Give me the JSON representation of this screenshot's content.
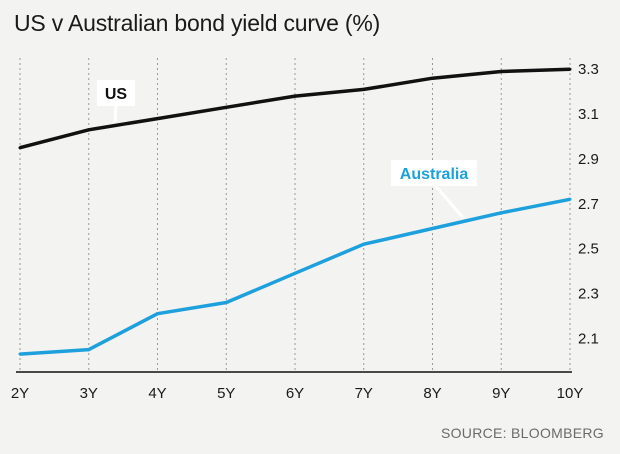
{
  "header": {
    "title": "US v Australian bond yield curve (%)"
  },
  "footer": {
    "source": "SOURCE: BLOOMBERG"
  },
  "chart_data": {
    "type": "line",
    "title": "US v Australian bond yield curve (%)",
    "xlabel": "",
    "ylabel": "",
    "categories": [
      "2Y",
      "3Y",
      "4Y",
      "5Y",
      "6Y",
      "7Y",
      "8Y",
      "9Y",
      "10Y"
    ],
    "yticks": [
      2.1,
      2.3,
      2.5,
      2.7,
      2.9,
      3.1,
      3.3
    ],
    "ylim": [
      1.95,
      3.35
    ],
    "grid": "vertical-dotted",
    "y_axis_position": "right",
    "series": [
      {
        "name": "US",
        "color": "#111111",
        "values": [
          2.95,
          3.03,
          3.08,
          3.13,
          3.18,
          3.21,
          3.26,
          3.29,
          3.3
        ]
      },
      {
        "name": "Australia",
        "color": "#1ea0dc",
        "values": [
          2.03,
          2.05,
          2.21,
          2.26,
          2.39,
          2.52,
          2.59,
          2.66,
          2.72
        ]
      }
    ],
    "source": "SOURCE: BLOOMBERG"
  },
  "colors": {
    "background": "#f3f3f2",
    "grid": "#9a9a9a",
    "axis": "#111111",
    "us_line": "#111111",
    "australia_line": "#1ea0dc",
    "label_background": "#ffffff"
  }
}
